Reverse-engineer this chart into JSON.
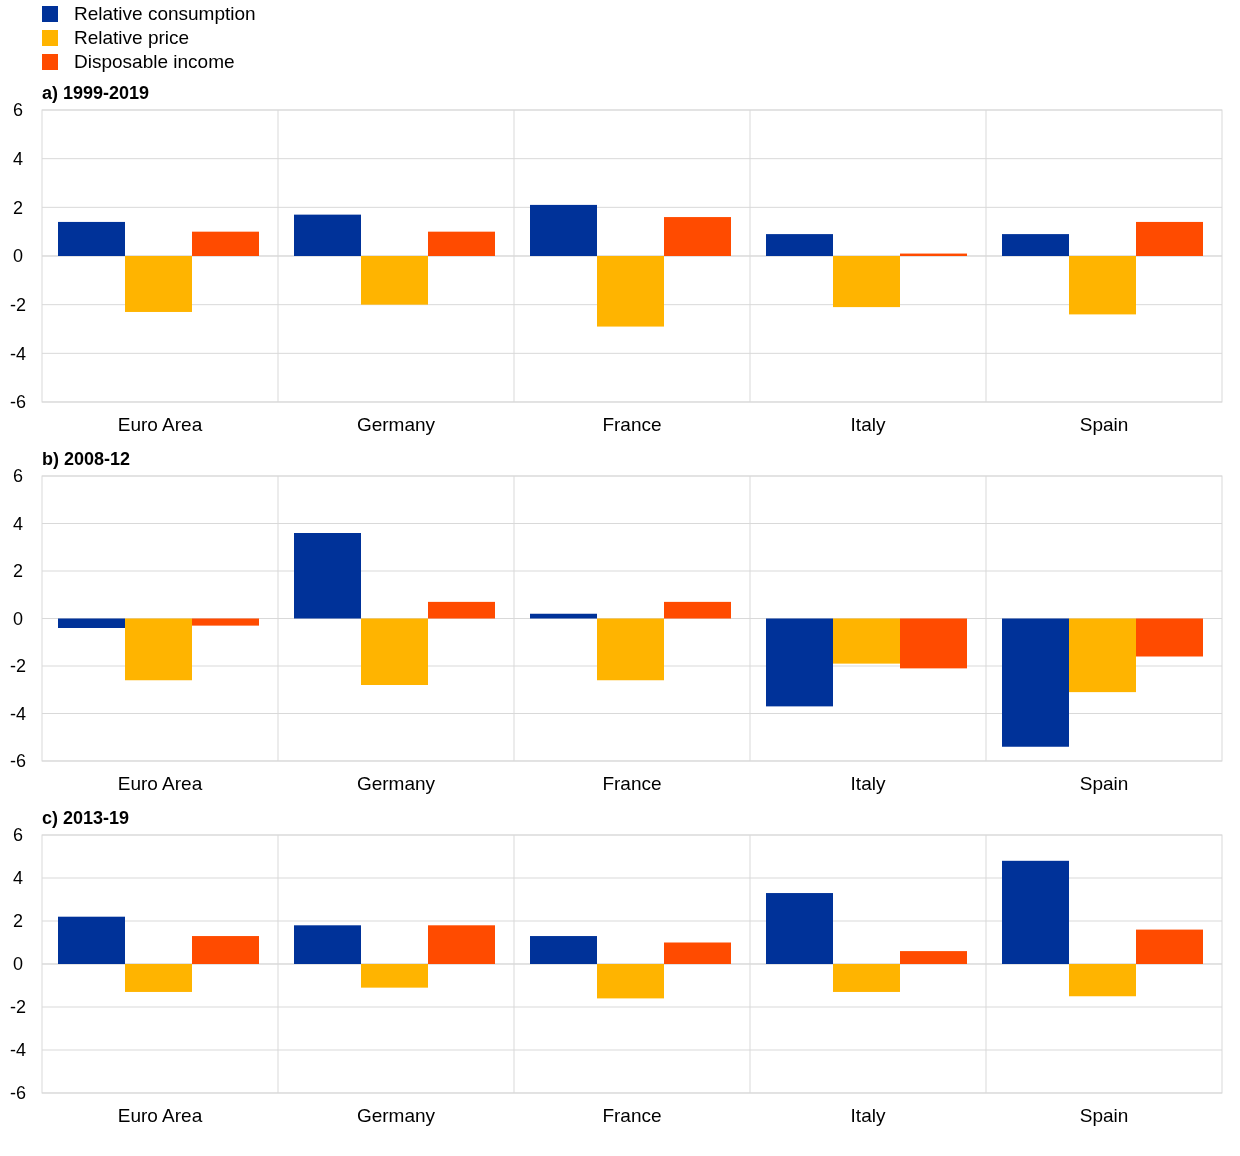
{
  "chart_data": [
    {
      "type": "bar",
      "title": "a) 1999-2019",
      "categories": [
        "Euro Area",
        "Germany",
        "France",
        "Italy",
        "Spain"
      ],
      "series": [
        {
          "name": "Relative consumption",
          "color": "#003299",
          "values": [
            1.4,
            1.7,
            2.1,
            0.9,
            0.9
          ]
        },
        {
          "name": "Relative price",
          "color": "#ffb400",
          "values": [
            -2.3,
            -2.0,
            -2.9,
            -2.1,
            -2.4
          ]
        },
        {
          "name": "Disposable income",
          "color": "#ff4b00",
          "values": [
            1.0,
            1.0,
            1.6,
            0.1,
            1.4
          ]
        }
      ],
      "ylim": [
        -6,
        6
      ],
      "yticks": [
        -6,
        -4,
        -2,
        0,
        2,
        4,
        6
      ],
      "grid": true,
      "legend": "top left"
    },
    {
      "type": "bar",
      "title": "b) 2008-12",
      "categories": [
        "Euro Area",
        "Germany",
        "France",
        "Italy",
        "Spain"
      ],
      "series": [
        {
          "color": "#003299",
          "values": [
            -0.4,
            3.6,
            0.2,
            -3.7,
            -5.4
          ]
        },
        {
          "color": "#ffb400",
          "values": [
            -2.6,
            -2.8,
            -2.6,
            -1.9,
            -3.1
          ]
        },
        {
          "color": "#ff4b00",
          "values": [
            -0.3,
            0.7,
            0.7,
            -2.1,
            -1.6
          ]
        }
      ],
      "ylim": [
        -6,
        6
      ],
      "yticks": [
        -6,
        -4,
        -2,
        0,
        2,
        4,
        6
      ],
      "grid": true
    },
    {
      "type": "bar",
      "title": "c) 2013-19",
      "categories": [
        "Euro Area",
        "Germany",
        "France",
        "Italy",
        "Spain"
      ],
      "series": [
        {
          "color": "#003299",
          "values": [
            2.2,
            1.8,
            1.3,
            3.3,
            4.8
          ]
        },
        {
          "color": "#ffb400",
          "values": [
            -1.3,
            -1.1,
            -1.6,
            -1.3,
            -1.5
          ]
        },
        {
          "color": "#ff4b00",
          "values": [
            1.3,
            1.8,
            1.0,
            0.6,
            1.6
          ]
        }
      ],
      "ylim": [
        -6,
        6
      ],
      "yticks": [
        -6,
        -4,
        -2,
        0,
        2,
        4,
        6
      ],
      "grid": true
    }
  ]
}
